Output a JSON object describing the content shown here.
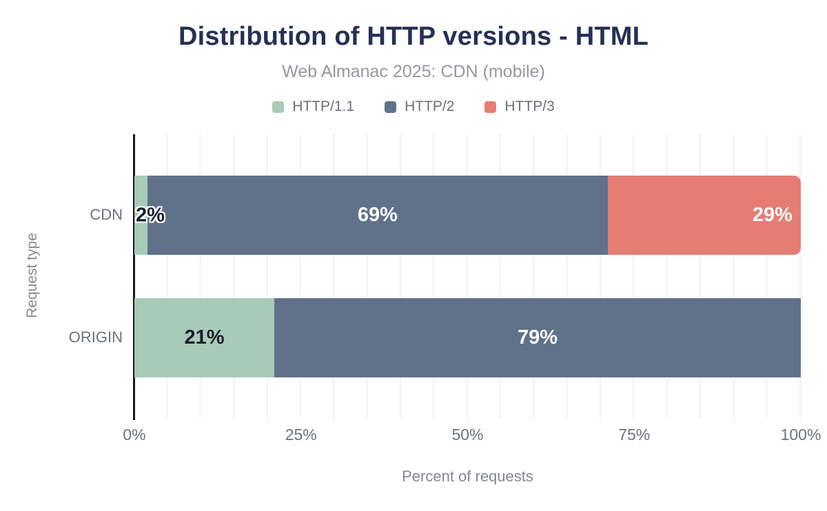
{
  "chart_data": {
    "type": "bar",
    "orientation": "horizontal",
    "stacked": true,
    "unit": "%",
    "title": "Distribution of HTTP versions - HTML",
    "subtitle": "Web Almanac 2025: CDN (mobile)",
    "categories": [
      "CDN",
      "ORIGIN"
    ],
    "series": [
      {
        "name": "HTTP/1.1",
        "color": "#a8cbb8",
        "values": [
          2,
          21
        ],
        "label_color": "#171c2b",
        "label_align": "center"
      },
      {
        "name": "HTTP/2",
        "color": "#60718a",
        "values": [
          69,
          79
        ],
        "label_color": "#ffffff",
        "label_align": "center"
      },
      {
        "name": "HTTP/3",
        "color": "#e67d75",
        "values": [
          29,
          0
        ],
        "label_color": "#ffffff",
        "label_align": "right"
      }
    ],
    "data_labels": [
      [
        "2%",
        "69%",
        "29%"
      ],
      [
        "21%",
        "79%",
        ""
      ]
    ],
    "xlabel": "Percent of requests",
    "ylabel": "Request type",
    "x_ticks": [
      "0%",
      "25%",
      "50%",
      "75%",
      "100%"
    ],
    "xlim": [
      0,
      100
    ],
    "minor_gridline_step": 5,
    "grid": true,
    "legend_position": "top",
    "colors": {
      "title": "#243154",
      "subtitle": "#95989d",
      "axis_text": "#6d7278",
      "axis_line": "#15171c",
      "gridline": "#f0f0f0"
    }
  }
}
